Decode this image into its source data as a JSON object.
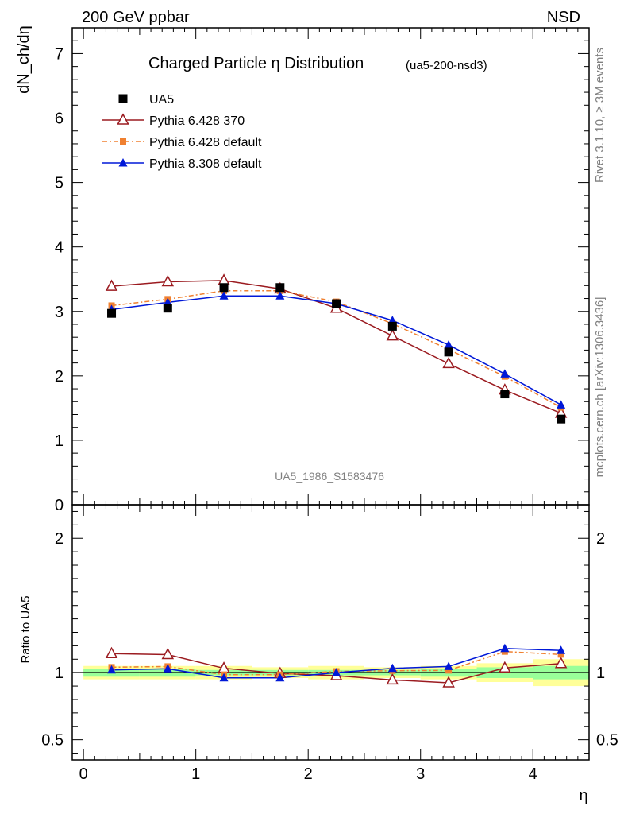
{
  "header": {
    "left": "200 GeV ppbar",
    "right": "NSD"
  },
  "side_text": {
    "rivet": "Rivet 3.1.10, ≥ 3M events",
    "mcplots": "mcplots.cern.ch [arXiv:1306.3436]"
  },
  "watermark": "UA5_1986_S1583476",
  "chart_data": [
    {
      "type": "line",
      "title": "Charged Particle η Distribution",
      "subtitle": "(ua5-200-nsd3)",
      "ylabel": "dN_ch/dη",
      "xlim": [
        -0.1,
        4.5
      ],
      "ylim": [
        0,
        7.4
      ],
      "yticks": [
        0,
        1,
        2,
        3,
        4,
        5,
        6,
        7
      ],
      "legend_position": "top-left",
      "x": [
        0.25,
        0.75,
        1.25,
        1.75,
        2.25,
        2.75,
        3.25,
        3.75,
        4.25
      ],
      "series": [
        {
          "name": "UA5",
          "marker": "square",
          "color": "#000000",
          "values": [
            2.97,
            3.05,
            3.37,
            3.37,
            3.12,
            2.77,
            2.37,
            1.72,
            1.33
          ],
          "band_xlo": [
            0.0,
            0.5,
            1.0,
            1.5,
            2.0,
            2.5,
            3.0,
            3.5,
            4.0
          ],
          "band_xhi": [
            0.5,
            1.0,
            1.5,
            2.0,
            2.5,
            3.0,
            3.5,
            4.0,
            4.5
          ],
          "stat_rel": [
            0.03,
            0.03,
            0.02,
            0.02,
            0.02,
            0.02,
            0.03,
            0.04,
            0.05
          ],
          "total_rel": [
            0.05,
            0.05,
            0.05,
            0.04,
            0.05,
            0.04,
            0.05,
            0.07,
            0.1
          ]
        },
        {
          "name": "Pythia 6.428 370",
          "marker": "open-triangle",
          "color": "#9b1b20",
          "dash": "solid",
          "values": [
            3.39,
            3.46,
            3.48,
            3.35,
            3.05,
            2.62,
            2.19,
            1.78,
            1.42
          ]
        },
        {
          "name": "Pythia 6.428 default",
          "marker": "small-square",
          "color": "#f08030",
          "dash": "dashdot",
          "values": [
            3.09,
            3.19,
            3.32,
            3.32,
            3.15,
            2.81,
            2.41,
            1.99,
            1.51
          ]
        },
        {
          "name": "Pythia 8.308 default",
          "marker": "filled-triangle",
          "color": "#0018d8",
          "dash": "solid",
          "values": [
            3.03,
            3.14,
            3.24,
            3.24,
            3.12,
            2.86,
            2.48,
            2.03,
            1.55
          ]
        }
      ]
    },
    {
      "type": "line",
      "ylabel": "Ratio to UA5",
      "xlabel": "η",
      "ylim": [
        0.35,
        2.25
      ],
      "yticks": [
        0.5,
        1,
        2
      ],
      "xticks": [
        0,
        1,
        2,
        3,
        4
      ],
      "reference": 1
    }
  ]
}
